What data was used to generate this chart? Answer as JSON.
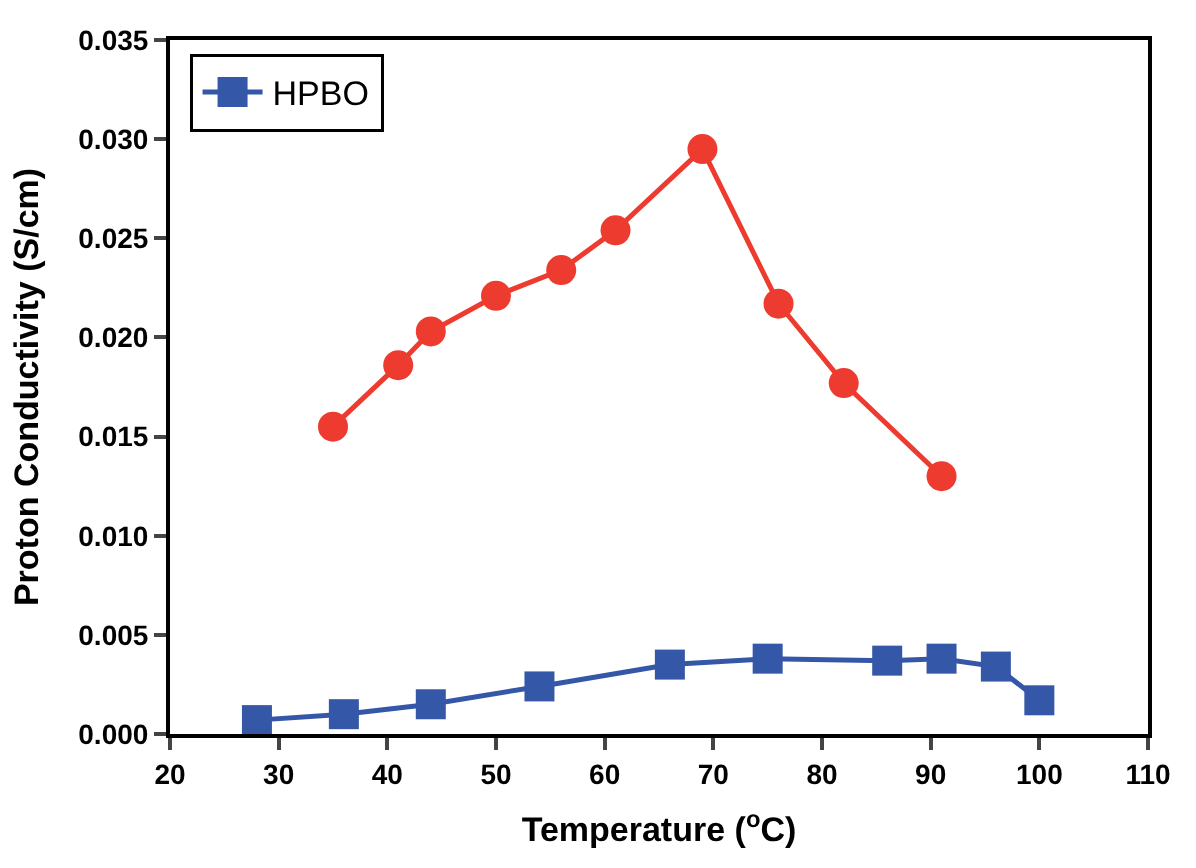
{
  "chart_data": {
    "type": "line",
    "xlabel": "Temperature ($^{o}$C)",
    "ylabel": "Proton Conductivity (S/cm)",
    "xlim": [
      20,
      110
    ],
    "xticks": [
      20,
      30,
      40,
      50,
      60,
      70,
      80,
      90,
      100,
      110
    ],
    "ylim": [
      0,
      0.035
    ],
    "yticks": [
      {
        "value": 0,
        "label": "0.000"
      },
      {
        "value": 0.005,
        "label": "0.005"
      },
      {
        "value": 0.01,
        "label": "0.010"
      },
      {
        "value": 0.015,
        "label": "0.015"
      },
      {
        "value": 0.02,
        "label": "0.020"
      },
      {
        "value": 0.025,
        "label": "0.025"
      },
      {
        "value": 0.03,
        "label": "0.030"
      },
      {
        "value": 0.035,
        "label": "0.035"
      }
    ],
    "legend": "top left",
    "line_style": "solid",
    "series": [
      {
        "color": "#ee3b2f",
        "marker": "circle",
        "x": [
          35,
          41,
          44,
          50,
          56,
          61,
          69,
          76,
          82,
          91
        ],
        "values": [
          0.0155,
          0.0186,
          0.0203,
          0.0221,
          0.0234,
          0.0254,
          0.0295,
          0.0217,
          0.0177,
          0.013
        ]
      },
      {
        "name": "HPBO",
        "color": "#3557a8",
        "marker": "square",
        "x": [
          28,
          36,
          44,
          54,
          66,
          75,
          86,
          91,
          96,
          100
        ],
        "values": [
          0.0007,
          0.001,
          0.0015,
          0.0024,
          0.0035,
          0.0038,
          0.0037,
          0.0038,
          0.0034,
          0.0017
        ]
      }
    ]
  }
}
